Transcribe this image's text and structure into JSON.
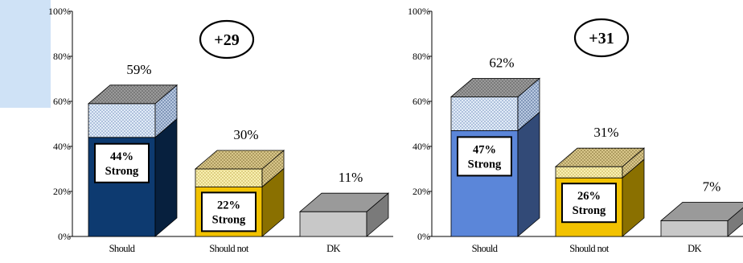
{
  "page": {
    "accent_panel_color": "#cfe2f6"
  },
  "chart_data": [
    {
      "type": "bar",
      "categories": [
        "Should",
        "Should not",
        "DK"
      ],
      "values": [
        59,
        30,
        11
      ],
      "strong_values": [
        44,
        22,
        null
      ],
      "value_labels": [
        "59%",
        "30%",
        "11%"
      ],
      "strong_labels": [
        {
          "pct": "44%",
          "word": "Strong"
        },
        {
          "pct": "22%",
          "word": "Strong"
        },
        null
      ],
      "net_label": "+29",
      "ylim": [
        0,
        100
      ],
      "yticks": [
        0,
        20,
        40,
        60,
        80,
        100
      ],
      "ytick_labels": [
        "0%",
        "20%",
        "40%",
        "60%",
        "80%",
        "100%"
      ],
      "colors": {
        "should_strong": "#0d3a70",
        "should_soft": "#e2ecf7",
        "shouldnot_strong": "#f2c200",
        "shouldnot_soft": "#f8efb0",
        "dk": "#c8c8c8"
      }
    },
    {
      "type": "bar",
      "categories": [
        "Should",
        "Should not",
        "DK"
      ],
      "values": [
        62,
        31,
        7
      ],
      "strong_values": [
        47,
        26,
        null
      ],
      "value_labels": [
        "62%",
        "31%",
        "7%"
      ],
      "strong_labels": [
        {
          "pct": "47%",
          "word": "Strong"
        },
        {
          "pct": "26%",
          "word": "Strong"
        },
        null
      ],
      "net_label": "+31",
      "ylim": [
        0,
        100
      ],
      "yticks": [
        0,
        20,
        40,
        60,
        80,
        100
      ],
      "ytick_labels": [
        "0%",
        "20%",
        "40%",
        "60%",
        "80%",
        "100%"
      ],
      "colors": {
        "should_strong": "#5b86d9",
        "should_soft": "#e2ecf7",
        "shouldnot_strong": "#f2c200",
        "shouldnot_soft": "#f8efb0",
        "dk": "#c8c8c8"
      }
    }
  ]
}
